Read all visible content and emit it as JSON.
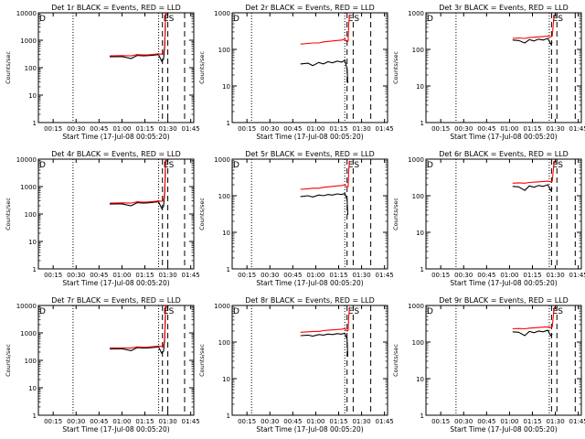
{
  "figure": {
    "background": "#ffffff",
    "events_color": "#000000",
    "lld_color": "#ff0000"
  },
  "chart_data": [
    {
      "type": "line",
      "title": "Det 1r BLACK = Events, RED = LLD",
      "xlabel": "Start Time (17-Jul-08 00:05:20)",
      "ylabel": "Counts/sec",
      "log_y": true,
      "ylim": [
        1,
        10000
      ],
      "y_ticks": [
        "1",
        "10",
        "100",
        "1000",
        "10000"
      ],
      "xlim_minutes": [
        5.33,
        107
      ],
      "x_ticks": [
        "00:15",
        "00:30",
        "00:45",
        "01:00",
        "01:15",
        "01:30",
        "01:45"
      ],
      "markers": [
        {
          "label": "D",
          "t": 5.33,
          "style": "solid"
        },
        {
          "label": "",
          "t": 28,
          "style": "dotted"
        },
        {
          "label": "",
          "t": 84,
          "style": "dotted"
        },
        {
          "label": "E",
          "t": 86.5,
          "style": "dashed"
        },
        {
          "label": "S",
          "t": 90,
          "style": "dashed"
        },
        {
          "label": "",
          "t": 101,
          "style": "dashed"
        }
      ],
      "series": [
        {
          "name": "Events",
          "x": [
            52,
            60,
            66,
            70,
            74,
            77,
            80,
            84,
            86,
            87.2,
            88,
            88.6,
            89.4
          ],
          "y": [
            250,
            255,
            215,
            280,
            270,
            275,
            285,
            300,
            170,
            205,
            600,
            9000,
            9000
          ]
        },
        {
          "name": "LLD",
          "x": [
            52,
            60,
            66,
            70,
            74,
            77,
            80,
            84,
            86,
            87.2,
            88,
            88.6,
            89.4
          ],
          "y": [
            270,
            275,
            270,
            300,
            290,
            295,
            305,
            320,
            310,
            330,
            650,
            9500,
            9500
          ]
        }
      ]
    },
    {
      "type": "line",
      "title": "Det 2r BLACK = Events, RED = LLD",
      "xlabel": "Start Time (17-Jul-08 00:05:20)",
      "ylabel": "Counts/sec",
      "log_y": true,
      "ylim": [
        1,
        1000
      ],
      "y_ticks": [
        "1",
        "10",
        "100",
        "1000"
      ],
      "xlim_minutes": [
        5.33,
        107
      ],
      "x_ticks": [
        "00:15",
        "00:30",
        "00:45",
        "01:00",
        "01:15",
        "01:30",
        "01:45"
      ],
      "markers": [
        {
          "label": "D",
          "t": 5.33,
          "style": "solid"
        },
        {
          "label": "",
          "t": 18,
          "style": "dotted"
        },
        {
          "label": "",
          "t": 79,
          "style": "dotted"
        },
        {
          "label": "E",
          "t": 80.5,
          "style": "dashed"
        },
        {
          "label": "S",
          "t": 84.5,
          "style": "dashed"
        },
        {
          "label": "",
          "t": 96,
          "style": "dashed"
        }
      ],
      "series": [
        {
          "name": "Events",
          "x": [
            50,
            55,
            58,
            62,
            65,
            68,
            71,
            74,
            77,
            79,
            80.5,
            81
          ],
          "y": [
            40,
            42,
            36,
            44,
            40,
            46,
            43,
            48,
            45,
            50,
            30,
            12
          ]
        },
        {
          "name": "LLD",
          "x": [
            50,
            55,
            58,
            62,
            65,
            68,
            71,
            74,
            77,
            79,
            80.5,
            81.2,
            81.6,
            82.2
          ],
          "y": [
            140,
            145,
            150,
            150,
            160,
            165,
            170,
            175,
            180,
            190,
            160,
            170,
            500,
            900
          ]
        }
      ]
    },
    {
      "type": "line",
      "title": "Det 3r BLACK = Events, RED = LLD",
      "xlabel": "Start Time (17-Jul-08 00:05:20)",
      "ylabel": "Counts/sec",
      "log_y": true,
      "ylim": [
        1,
        1000
      ],
      "y_ticks": [
        "1",
        "10",
        "100",
        "1000"
      ],
      "xlim_minutes": [
        5.33,
        107
      ],
      "x_ticks": [
        "00:15",
        "00:30",
        "00:45",
        "01:00",
        "01:15",
        "01:30",
        "01:45"
      ],
      "markers": [
        {
          "label": "D",
          "t": 5.33,
          "style": "solid"
        },
        {
          "label": "",
          "t": 25,
          "style": "dotted"
        },
        {
          "label": "",
          "t": 86,
          "style": "dotted"
        },
        {
          "label": "E",
          "t": 87.5,
          "style": "dashed"
        },
        {
          "label": "S",
          "t": 91,
          "style": "dashed"
        },
        {
          "label": "",
          "t": 103,
          "style": "dashed"
        }
      ],
      "series": [
        {
          "name": "Events",
          "x": [
            62,
            66,
            70,
            73,
            76,
            79,
            82,
            85,
            87,
            88
          ],
          "y": [
            180,
            175,
            150,
            185,
            170,
            190,
            180,
            200,
            140,
            160
          ]
        },
        {
          "name": "LLD",
          "x": [
            62,
            66,
            70,
            73,
            76,
            79,
            82,
            85,
            87,
            88,
            88.8,
            89.4
          ],
          "y": [
            200,
            205,
            200,
            210,
            215,
            220,
            225,
            230,
            220,
            230,
            600,
            900
          ]
        }
      ]
    },
    {
      "type": "line",
      "title": "Det 4r BLACK = Events, RED = LLD",
      "xlabel": "Start Time (17-Jul-08 00:05:20)",
      "ylabel": "Counts/sec",
      "log_y": true,
      "ylim": [
        1,
        10000
      ],
      "y_ticks": [
        "1",
        "10",
        "100",
        "1000",
        "10000"
      ],
      "xlim_minutes": [
        5.33,
        107
      ],
      "x_ticks": [
        "00:15",
        "00:30",
        "00:45",
        "01:00",
        "01:15",
        "01:30",
        "01:45"
      ],
      "markers": [
        {
          "label": "D",
          "t": 5.33,
          "style": "solid"
        },
        {
          "label": "",
          "t": 28,
          "style": "dotted"
        },
        {
          "label": "",
          "t": 84,
          "style": "dotted"
        },
        {
          "label": "E",
          "t": 86.5,
          "style": "dashed"
        },
        {
          "label": "S",
          "t": 90,
          "style": "dashed"
        },
        {
          "label": "",
          "t": 101,
          "style": "dashed"
        }
      ],
      "series": [
        {
          "name": "Events",
          "x": [
            52,
            60,
            66,
            70,
            74,
            77,
            80,
            84,
            86,
            87.2,
            88,
            88.6,
            89.4
          ],
          "y": [
            230,
            235,
            200,
            260,
            250,
            255,
            265,
            280,
            160,
            190,
            600,
            9000,
            9000
          ]
        },
        {
          "name": "LLD",
          "x": [
            52,
            60,
            66,
            70,
            74,
            77,
            80,
            84,
            86,
            87.2,
            88,
            88.6,
            89.4
          ],
          "y": [
            250,
            255,
            250,
            280,
            270,
            275,
            285,
            300,
            290,
            310,
            650,
            9500,
            9500
          ]
        }
      ]
    },
    {
      "type": "line",
      "title": "Det 5r BLACK = Events, RED = LLD",
      "xlabel": "Start Time (17-Jul-08 00:05:20)",
      "ylabel": "Counts/sec",
      "log_y": true,
      "ylim": [
        1,
        1000
      ],
      "y_ticks": [
        "1",
        "10",
        "100",
        "1000"
      ],
      "xlim_minutes": [
        5.33,
        107
      ],
      "x_ticks": [
        "00:15",
        "00:30",
        "00:45",
        "01:00",
        "01:15",
        "01:30",
        "01:45"
      ],
      "markers": [
        {
          "label": "D",
          "t": 5.33,
          "style": "solid"
        },
        {
          "label": "",
          "t": 18,
          "style": "dotted"
        },
        {
          "label": "",
          "t": 79,
          "style": "dotted"
        },
        {
          "label": "E",
          "t": 80.5,
          "style": "dashed"
        },
        {
          "label": "S",
          "t": 84.5,
          "style": "dashed"
        },
        {
          "label": "",
          "t": 96,
          "style": "dashed"
        }
      ],
      "series": [
        {
          "name": "Events",
          "x": [
            50,
            55,
            58,
            62,
            65,
            68,
            71,
            74,
            77,
            79,
            80.5,
            81
          ],
          "y": [
            95,
            100,
            92,
            105,
            100,
            108,
            104,
            112,
            108,
            115,
            80,
            30
          ]
        },
        {
          "name": "LLD",
          "x": [
            50,
            55,
            58,
            62,
            65,
            68,
            71,
            74,
            77,
            79,
            80.5,
            81.2,
            81.6,
            82.2
          ],
          "y": [
            150,
            155,
            160,
            160,
            170,
            175,
            180,
            185,
            190,
            200,
            170,
            180,
            500,
            900
          ]
        }
      ]
    },
    {
      "type": "line",
      "title": "Det 6r BLACK = Events, RED = LLD",
      "xlabel": "Start Time (17-Jul-08 00:05:20)",
      "ylabel": "Counts/sec",
      "log_y": true,
      "ylim": [
        1,
        1000
      ],
      "y_ticks": [
        "1",
        "10",
        "100",
        "1000"
      ],
      "xlim_minutes": [
        5.33,
        107
      ],
      "x_ticks": [
        "00:15",
        "00:30",
        "00:45",
        "01:00",
        "01:15",
        "01:30",
        "01:45"
      ],
      "markers": [
        {
          "label": "D",
          "t": 5.33,
          "style": "solid"
        },
        {
          "label": "",
          "t": 25,
          "style": "dotted"
        },
        {
          "label": "",
          "t": 86,
          "style": "dotted"
        },
        {
          "label": "E",
          "t": 87.5,
          "style": "dashed"
        },
        {
          "label": "S",
          "t": 91,
          "style": "dashed"
        },
        {
          "label": "",
          "t": 103,
          "style": "dashed"
        }
      ],
      "series": [
        {
          "name": "Events",
          "x": [
            62,
            66,
            70,
            73,
            76,
            79,
            82,
            85,
            87,
            88
          ],
          "y": [
            180,
            175,
            140,
            185,
            170,
            190,
            180,
            200,
            140,
            160
          ]
        },
        {
          "name": "LLD",
          "x": [
            62,
            66,
            70,
            73,
            76,
            79,
            82,
            85,
            87,
            88,
            88.8,
            89.4
          ],
          "y": [
            220,
            225,
            220,
            230,
            235,
            240,
            245,
            250,
            240,
            250,
            600,
            900
          ]
        }
      ]
    },
    {
      "type": "line",
      "title": "Det 7r BLACK = Events, RED = LLD",
      "xlabel": "Start Time (17-Jul-08 00:05:20)",
      "ylabel": "Counts/sec",
      "log_y": true,
      "ylim": [
        1,
        10000
      ],
      "y_ticks": [
        "1",
        "10",
        "100",
        "1000",
        "10000"
      ],
      "xlim_minutes": [
        5.33,
        107
      ],
      "x_ticks": [
        "00:15",
        "00:30",
        "00:45",
        "01:00",
        "01:15",
        "01:30",
        "01:45"
      ],
      "markers": [
        {
          "label": "D",
          "t": 5.33,
          "style": "solid"
        },
        {
          "label": "",
          "t": 28,
          "style": "dotted"
        },
        {
          "label": "",
          "t": 84,
          "style": "dotted"
        },
        {
          "label": "E",
          "t": 86.5,
          "style": "dashed"
        },
        {
          "label": "S",
          "t": 90,
          "style": "dashed"
        },
        {
          "label": "",
          "t": 101,
          "style": "dashed"
        }
      ],
      "series": [
        {
          "name": "Events",
          "x": [
            52,
            60,
            66,
            70,
            74,
            77,
            80,
            84,
            86,
            87.2,
            88,
            88.6,
            89.4
          ],
          "y": [
            260,
            265,
            225,
            290,
            280,
            285,
            295,
            310,
            180,
            215,
            600,
            9000,
            9000
          ]
        },
        {
          "name": "LLD",
          "x": [
            52,
            60,
            66,
            70,
            74,
            77,
            80,
            84,
            86,
            87.2,
            88,
            88.6,
            89.4
          ],
          "y": [
            280,
            285,
            280,
            310,
            300,
            305,
            315,
            330,
            320,
            340,
            650,
            9500,
            9500
          ]
        }
      ]
    },
    {
      "type": "line",
      "title": "Det 8r BLACK = Events, RED = LLD",
      "xlabel": "Start Time (17-Jul-08 00:05:20)",
      "ylabel": "Counts/sec",
      "log_y": true,
      "ylim": [
        1,
        1000
      ],
      "y_ticks": [
        "1",
        "10",
        "100",
        "1000"
      ],
      "xlim_minutes": [
        5.33,
        107
      ],
      "x_ticks": [
        "00:15",
        "00:30",
        "00:45",
        "01:00",
        "01:15",
        "01:30",
        "01:45"
      ],
      "markers": [
        {
          "label": "D",
          "t": 5.33,
          "style": "solid"
        },
        {
          "label": "",
          "t": 18,
          "style": "dotted"
        },
        {
          "label": "",
          "t": 79,
          "style": "dotted"
        },
        {
          "label": "E",
          "t": 80.5,
          "style": "dashed"
        },
        {
          "label": "S",
          "t": 84.5,
          "style": "dashed"
        },
        {
          "label": "",
          "t": 96,
          "style": "dashed"
        }
      ],
      "series": [
        {
          "name": "Events",
          "x": [
            50,
            55,
            58,
            62,
            65,
            68,
            71,
            74,
            77,
            79,
            80.5,
            81
          ],
          "y": [
            150,
            155,
            145,
            160,
            155,
            165,
            160,
            170,
            165,
            175,
            120,
            40
          ]
        },
        {
          "name": "LLD",
          "x": [
            50,
            55,
            58,
            62,
            65,
            68,
            71,
            74,
            77,
            79,
            80.5,
            81.2,
            81.6,
            82.2
          ],
          "y": [
            185,
            190,
            195,
            195,
            205,
            210,
            215,
            220,
            225,
            235,
            200,
            210,
            500,
            900
          ]
        }
      ]
    },
    {
      "type": "line",
      "title": "Det 9r BLACK = Events, RED = LLD",
      "xlabel": "Start Time (17-Jul-08 00:05:20)",
      "ylabel": "Counts/sec",
      "log_y": true,
      "ylim": [
        1,
        1000
      ],
      "y_ticks": [
        "1",
        "10",
        "100",
        "1000"
      ],
      "xlim_minutes": [
        5.33,
        107
      ],
      "x_ticks": [
        "00:15",
        "00:30",
        "00:45",
        "01:00",
        "01:15",
        "01:30",
        "01:45"
      ],
      "markers": [
        {
          "label": "D",
          "t": 5.33,
          "style": "solid"
        },
        {
          "label": "",
          "t": 25,
          "style": "dotted"
        },
        {
          "label": "",
          "t": 86,
          "style": "dotted"
        },
        {
          "label": "E",
          "t": 87.5,
          "style": "dashed"
        },
        {
          "label": "S",
          "t": 91,
          "style": "dashed"
        },
        {
          "label": "",
          "t": 103,
          "style": "dashed"
        }
      ],
      "series": [
        {
          "name": "Events",
          "x": [
            62,
            66,
            70,
            73,
            76,
            79,
            82,
            85,
            87,
            88
          ],
          "y": [
            190,
            185,
            150,
            195,
            180,
            200,
            190,
            210,
            150,
            170
          ]
        },
        {
          "name": "LLD",
          "x": [
            62,
            66,
            70,
            73,
            76,
            79,
            82,
            85,
            87,
            88,
            88.8,
            89.4
          ],
          "y": [
            230,
            235,
            230,
            240,
            245,
            250,
            255,
            260,
            250,
            260,
            600,
            900
          ]
        }
      ]
    }
  ]
}
